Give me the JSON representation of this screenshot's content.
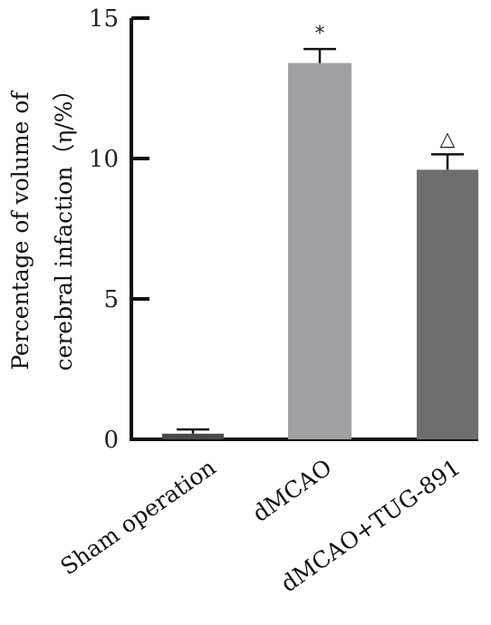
{
  "chart_data": {
    "type": "bar",
    "title": "",
    "xlabel": "",
    "ylabel_lines": [
      "Percentage of volume of",
      "cerebral infaction（η/%）"
    ],
    "categories": [
      "Sham operation",
      "dMCAO",
      "dMCAO+TUG-891"
    ],
    "values": [
      0.2,
      13.4,
      9.6
    ],
    "errors": [
      0.15,
      0.5,
      0.55
    ],
    "annotations": [
      "",
      "*",
      "△"
    ],
    "bar_colors": [
      "#4a4a4a",
      "#a0a0a4",
      "#6e6e6e"
    ],
    "ylim": [
      0,
      15
    ],
    "yticks": [
      0,
      5,
      10,
      15
    ],
    "grid": false,
    "legend": "none"
  }
}
